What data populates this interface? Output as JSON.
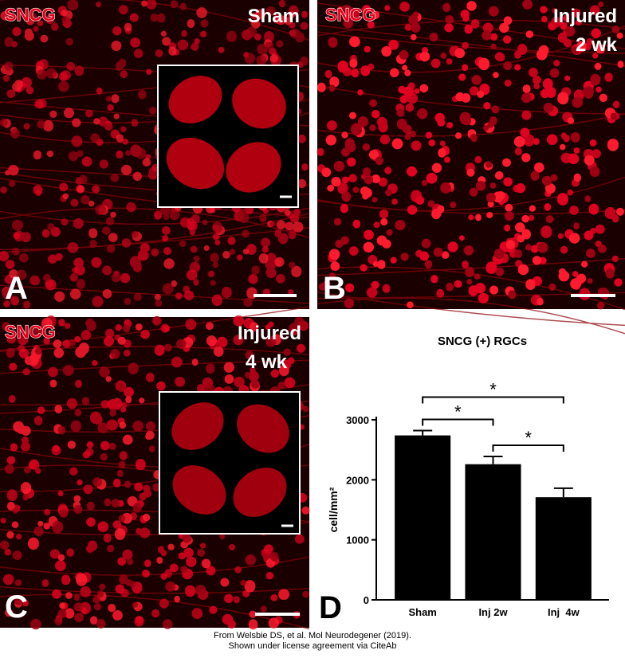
{
  "panels": [
    {
      "stain": "SNCG",
      "condition": [
        "Sham"
      ],
      "letter": "A"
    },
    {
      "stain": "SNCG",
      "condition": [
        "Injured",
        "2 wk"
      ],
      "letter": "B"
    },
    {
      "stain": "SNCG",
      "condition": [
        "Injured",
        "4 wk"
      ],
      "letter": "C"
    }
  ],
  "chart_data": {
    "type": "bar",
    "letter": "D",
    "title": "SNCG (+) RGCs",
    "y_label": "cell/mm²",
    "categories": [
      "Sham",
      "Inj 2w",
      "Inj  4w"
    ],
    "values": [
      2740,
      2260,
      1710
    ],
    "errors": [
      80,
      130,
      150
    ],
    "color": "#000000",
    "ylim": [
      0,
      3000
    ],
    "yticks": [
      0,
      1000,
      2000,
      3000
    ],
    "significance": [
      {
        "from": 0,
        "to": 1,
        "label": "*"
      },
      {
        "from": 0,
        "to": 2,
        "label": "*"
      },
      {
        "from": 1,
        "to": 2,
        "label": "*"
      }
    ]
  },
  "footer": [
    "From Welsbie DS, et al. Mol Neurodegener (2019).",
    "Shown under license agreement via CiteAb"
  ]
}
